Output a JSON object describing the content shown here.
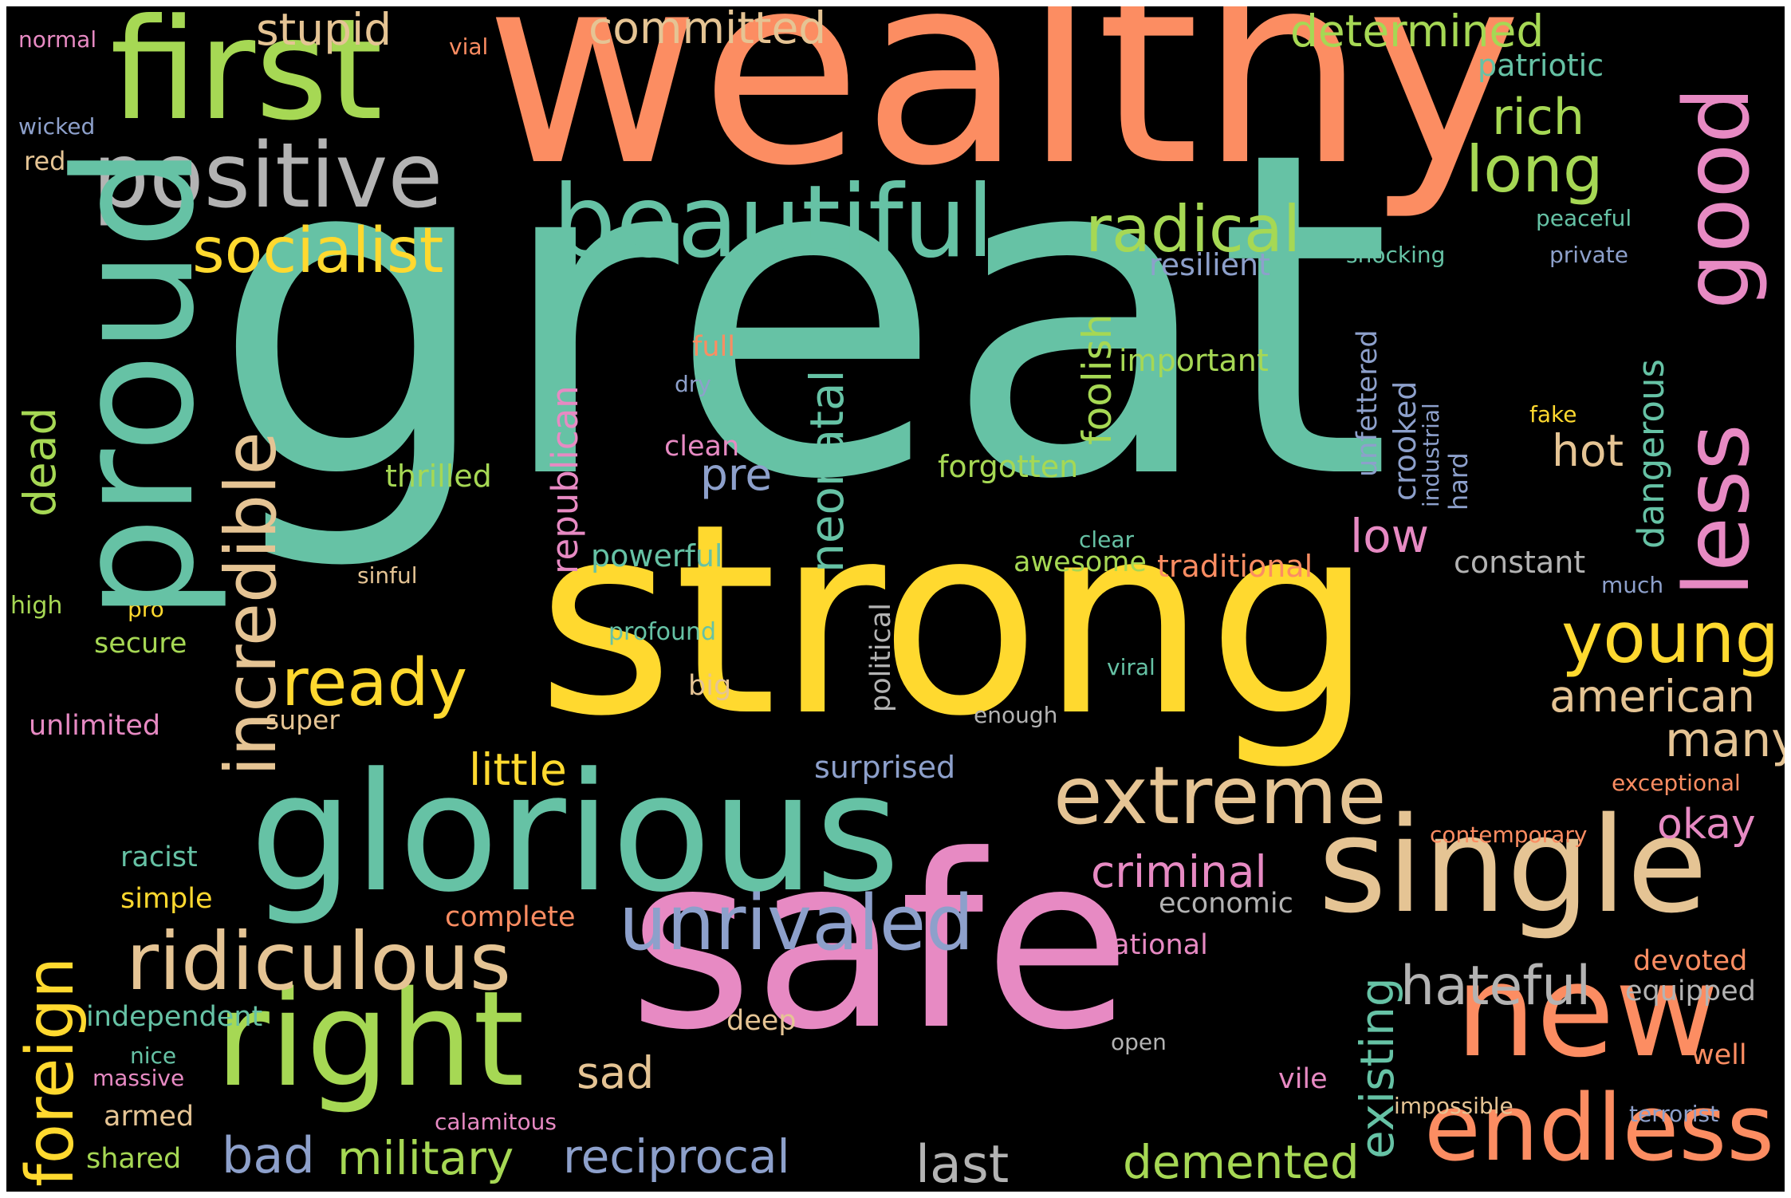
{
  "words": [
    {
      "text": "great",
      "color": "#66c2a5"
    },
    {
      "text": "wealthy",
      "color": "#fc8d62"
    },
    {
      "text": "strong",
      "color": "#ffd92f"
    },
    {
      "text": "safe",
      "color": "#e78ac3"
    },
    {
      "text": "proud",
      "color": "#66c2a5"
    },
    {
      "text": "glorious",
      "color": "#66c2a5"
    },
    {
      "text": "first",
      "color": "#a6d854"
    },
    {
      "text": "positive",
      "color": "#b3b3b3"
    },
    {
      "text": "beautiful",
      "color": "#66c2a5"
    },
    {
      "text": "right",
      "color": "#a6d854"
    },
    {
      "text": "single",
      "color": "#e5c494"
    },
    {
      "text": "new",
      "color": "#fc8d62"
    },
    {
      "text": "endless",
      "color": "#fc8d62"
    },
    {
      "text": "good",
      "color": "#e78ac3"
    },
    {
      "text": "less",
      "color": "#e78ac3"
    },
    {
      "text": "extreme",
      "color": "#e5c494"
    },
    {
      "text": "ridiculous",
      "color": "#e5c494"
    },
    {
      "text": "unrivaled",
      "color": "#8da0cb"
    },
    {
      "text": "incredible",
      "color": "#e5c494"
    },
    {
      "text": "socialist",
      "color": "#ffd92f"
    },
    {
      "text": "young",
      "color": "#ffd92f"
    },
    {
      "text": "ready",
      "color": "#ffd92f"
    },
    {
      "text": "foreign",
      "color": "#ffd92f"
    },
    {
      "text": "radical",
      "color": "#a6d854"
    },
    {
      "text": "long",
      "color": "#a6d854"
    },
    {
      "text": "rich",
      "color": "#a6d854"
    },
    {
      "text": "hateful",
      "color": "#b3b3b3"
    },
    {
      "text": "existing",
      "color": "#66c2a5"
    },
    {
      "text": "military",
      "color": "#a6d854"
    },
    {
      "text": "reciprocal",
      "color": "#8da0cb"
    },
    {
      "text": "demented",
      "color": "#a6d854"
    },
    {
      "text": "last",
      "color": "#b3b3b3"
    },
    {
      "text": "bad",
      "color": "#8da0cb"
    },
    {
      "text": "neonatal",
      "color": "#66c2a5"
    },
    {
      "text": "committed",
      "color": "#e5c494"
    },
    {
      "text": "determined",
      "color": "#a6d854"
    },
    {
      "text": "stupid",
      "color": "#e5c494"
    },
    {
      "text": "american",
      "color": "#e5c494"
    },
    {
      "text": "many",
      "color": "#e5c494"
    },
    {
      "text": "dead",
      "color": "#a6d854"
    },
    {
      "text": "republican",
      "color": "#e78ac3"
    },
    {
      "text": "foolish",
      "color": "#a6d854"
    },
    {
      "text": "little",
      "color": "#ffd92f"
    },
    {
      "text": "criminal",
      "color": "#e78ac3"
    },
    {
      "text": "low",
      "color": "#e78ac3"
    },
    {
      "text": "hot",
      "color": "#e5c494"
    },
    {
      "text": "dangerous",
      "color": "#66c2a5"
    },
    {
      "text": "okay",
      "color": "#e78ac3"
    },
    {
      "text": "pre",
      "color": "#8da0cb"
    },
    {
      "text": "sad",
      "color": "#e5c494"
    },
    {
      "text": "patriotic",
      "color": "#66c2a5"
    },
    {
      "text": "thrilled",
      "color": "#a6d854"
    },
    {
      "text": "forgotten",
      "color": "#a6d854"
    },
    {
      "text": "powerful",
      "color": "#66c2a5"
    },
    {
      "text": "traditional",
      "color": "#fc8d62"
    },
    {
      "text": "awesome",
      "color": "#a6d854"
    },
    {
      "text": "constant",
      "color": "#b3b3b3"
    },
    {
      "text": "important",
      "color": "#a6d854"
    },
    {
      "text": "resilient",
      "color": "#8da0cb"
    },
    {
      "text": "crooked",
      "color": "#8da0cb"
    },
    {
      "text": "unfettered",
      "color": "#8da0cb"
    },
    {
      "text": "hard",
      "color": "#8da0cb"
    },
    {
      "text": "industrial",
      "color": "#8da0cb"
    },
    {
      "text": "political",
      "color": "#b3b3b3"
    },
    {
      "text": "surprised",
      "color": "#8da0cb"
    },
    {
      "text": "economic",
      "color": "#b3b3b3"
    },
    {
      "text": "national",
      "color": "#e78ac3"
    },
    {
      "text": "complete",
      "color": "#fc8d62"
    },
    {
      "text": "independent",
      "color": "#66c2a5"
    },
    {
      "text": "equipped",
      "color": "#b3b3b3"
    },
    {
      "text": "devoted",
      "color": "#fc8d62"
    },
    {
      "text": "well",
      "color": "#fc8d62"
    },
    {
      "text": "vile",
      "color": "#e78ac3"
    },
    {
      "text": "armed",
      "color": "#e5c494"
    },
    {
      "text": "shared",
      "color": "#a6d854"
    },
    {
      "text": "deep",
      "color": "#e5c494"
    },
    {
      "text": "clean",
      "color": "#e78ac3"
    },
    {
      "text": "full",
      "color": "#fc8d62"
    },
    {
      "text": "secure",
      "color": "#a6d854"
    },
    {
      "text": "unlimited",
      "color": "#e78ac3"
    },
    {
      "text": "super",
      "color": "#e5c494"
    },
    {
      "text": "big",
      "color": "#e5c494"
    },
    {
      "text": "racist",
      "color": "#66c2a5"
    },
    {
      "text": "simple",
      "color": "#ffd92f"
    },
    {
      "text": "normal",
      "color": "#e78ac3"
    },
    {
      "text": "vial",
      "color": "#fc8d62"
    },
    {
      "text": "wicked",
      "color": "#8da0cb"
    },
    {
      "text": "red",
      "color": "#e5c494"
    },
    {
      "text": "dry",
      "color": "#8da0cb"
    },
    {
      "text": "sinful",
      "color": "#e5c494"
    },
    {
      "text": "high",
      "color": "#a6d854"
    },
    {
      "text": "pro",
      "color": "#ffd92f"
    },
    {
      "text": "profound",
      "color": "#66c2a5"
    },
    {
      "text": "clear",
      "color": "#66c2a5"
    },
    {
      "text": "viral",
      "color": "#66c2a5"
    },
    {
      "text": "enough",
      "color": "#b3b3b3"
    },
    {
      "text": "fake",
      "color": "#ffd92f"
    },
    {
      "text": "peaceful",
      "color": "#66c2a5"
    },
    {
      "text": "private",
      "color": "#8da0cb"
    },
    {
      "text": "shocking",
      "color": "#66c2a5"
    },
    {
      "text": "much",
      "color": "#8da0cb"
    },
    {
      "text": "exceptional",
      "color": "#fc8d62"
    },
    {
      "text": "contemporary",
      "color": "#fc8d62"
    },
    {
      "text": "open",
      "color": "#b3b3b3"
    },
    {
      "text": "impossible",
      "color": "#e5c494"
    },
    {
      "text": "terrorist",
      "color": "#8da0cb"
    },
    {
      "text": "nice",
      "color": "#66c2a5"
    },
    {
      "text": "massive",
      "color": "#e78ac3"
    },
    {
      "text": "calamitous",
      "color": "#e78ac3"
    }
  ]
}
